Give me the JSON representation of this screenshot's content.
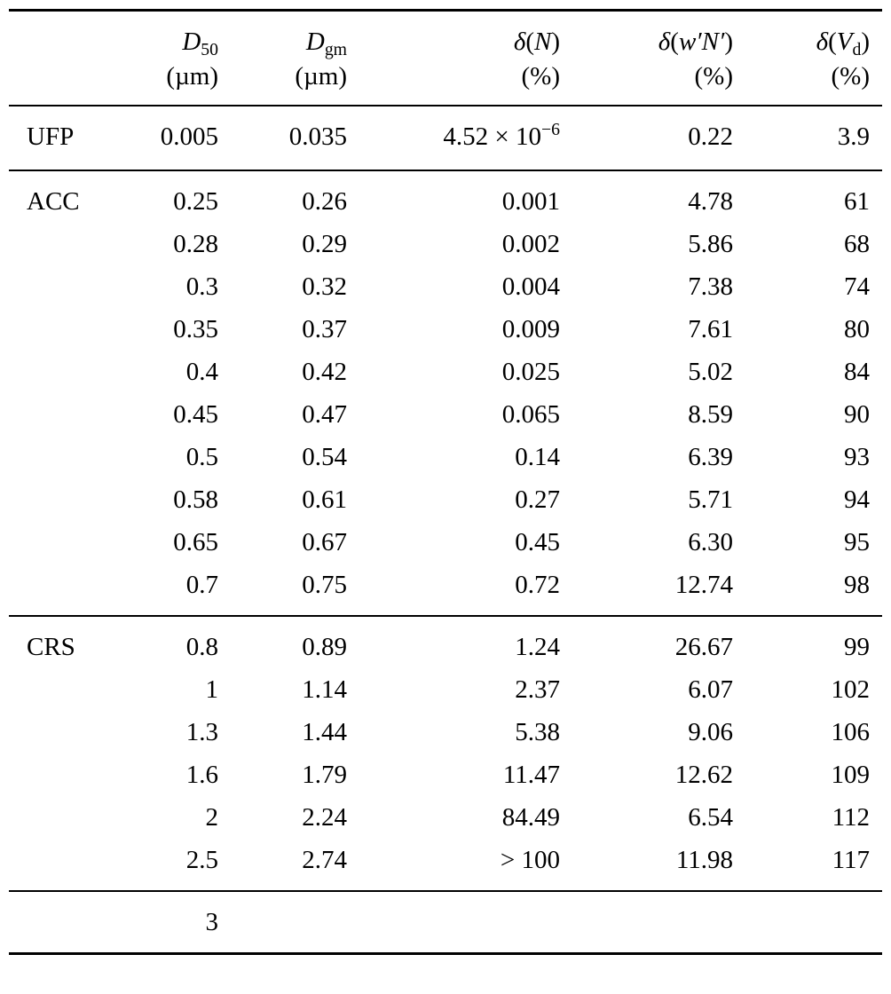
{
  "page": {
    "background_color": "#ffffff",
    "text_color": "#000000"
  },
  "table": {
    "header": {
      "empty_corner": "",
      "cols": [
        {
          "main": [
            {
              "t": "D",
              "it": true
            },
            {
              "t": "50",
              "sub": true
            }
          ],
          "unit": "(µm)"
        },
        {
          "main": [
            {
              "t": "D",
              "it": true
            },
            {
              "t": "gm",
              "sub": true
            }
          ],
          "unit": "(µm)"
        },
        {
          "main": [
            {
              "t": "δ",
              "it": true
            },
            {
              "t": "("
            },
            {
              "t": "N",
              "it": true
            },
            {
              "t": ")"
            }
          ],
          "unit": "(%)"
        },
        {
          "main": [
            {
              "t": "δ",
              "it": true
            },
            {
              "t": "("
            },
            {
              "t": "w′N′",
              "it": true
            },
            {
              "t": ")"
            }
          ],
          "unit": "(%)"
        },
        {
          "main": [
            {
              "t": "δ",
              "it": true
            },
            {
              "t": "("
            },
            {
              "t": "V",
              "it": true
            },
            {
              "t": "d",
              "sub": true
            },
            {
              "t": ")"
            }
          ],
          "unit": "(%)"
        }
      ]
    },
    "groups": [
      {
        "label": "UFP",
        "rows": [
          {
            "cells": [
              "0.005",
              "0.035",
              {
                "base": "4.52 × 10",
                "sup": "−6"
              },
              "0.22",
              "3.9"
            ]
          }
        ]
      },
      {
        "label": "ACC",
        "rows": [
          {
            "cells": [
              "0.25",
              "0.26",
              "0.001",
              "4.78",
              "61"
            ]
          },
          {
            "cells": [
              "0.28",
              "0.29",
              "0.002",
              "5.86",
              "68"
            ]
          },
          {
            "cells": [
              "0.3",
              "0.32",
              "0.004",
              "7.38",
              "74"
            ]
          },
          {
            "cells": [
              "0.35",
              "0.37",
              "0.009",
              "7.61",
              "80"
            ]
          },
          {
            "cells": [
              "0.4",
              "0.42",
              "0.025",
              "5.02",
              "84"
            ]
          },
          {
            "cells": [
              "0.45",
              "0.47",
              "0.065",
              "8.59",
              "90"
            ]
          },
          {
            "cells": [
              "0.5",
              "0.54",
              "0.14",
              "6.39",
              "93"
            ]
          },
          {
            "cells": [
              "0.58",
              "0.61",
              "0.27",
              "5.71",
              "94"
            ]
          },
          {
            "cells": [
              "0.65",
              "0.67",
              "0.45",
              "6.30",
              "95"
            ]
          },
          {
            "cells": [
              "0.7",
              "0.75",
              "0.72",
              "12.74",
              "98"
            ]
          }
        ]
      },
      {
        "label": "CRS",
        "rows": [
          {
            "cells": [
              "0.8",
              "0.89",
              "1.24",
              "26.67",
              "99"
            ]
          },
          {
            "cells": [
              "1",
              "1.14",
              "2.37",
              "6.07",
              "102"
            ]
          },
          {
            "cells": [
              "1.3",
              "1.44",
              "5.38",
              "9.06",
              "106"
            ]
          },
          {
            "cells": [
              "1.6",
              "1.79",
              "11.47",
              "12.62",
              "109"
            ]
          },
          {
            "cells": [
              "2",
              "2.24",
              "84.49",
              "6.54",
              "112"
            ]
          },
          {
            "cells": [
              "2.5",
              "2.74",
              "> 100",
              "11.98",
              "117"
            ]
          }
        ]
      },
      {
        "label": "",
        "rows": [
          {
            "cells": [
              "3",
              "",
              "",
              "",
              ""
            ]
          }
        ]
      }
    ]
  }
}
